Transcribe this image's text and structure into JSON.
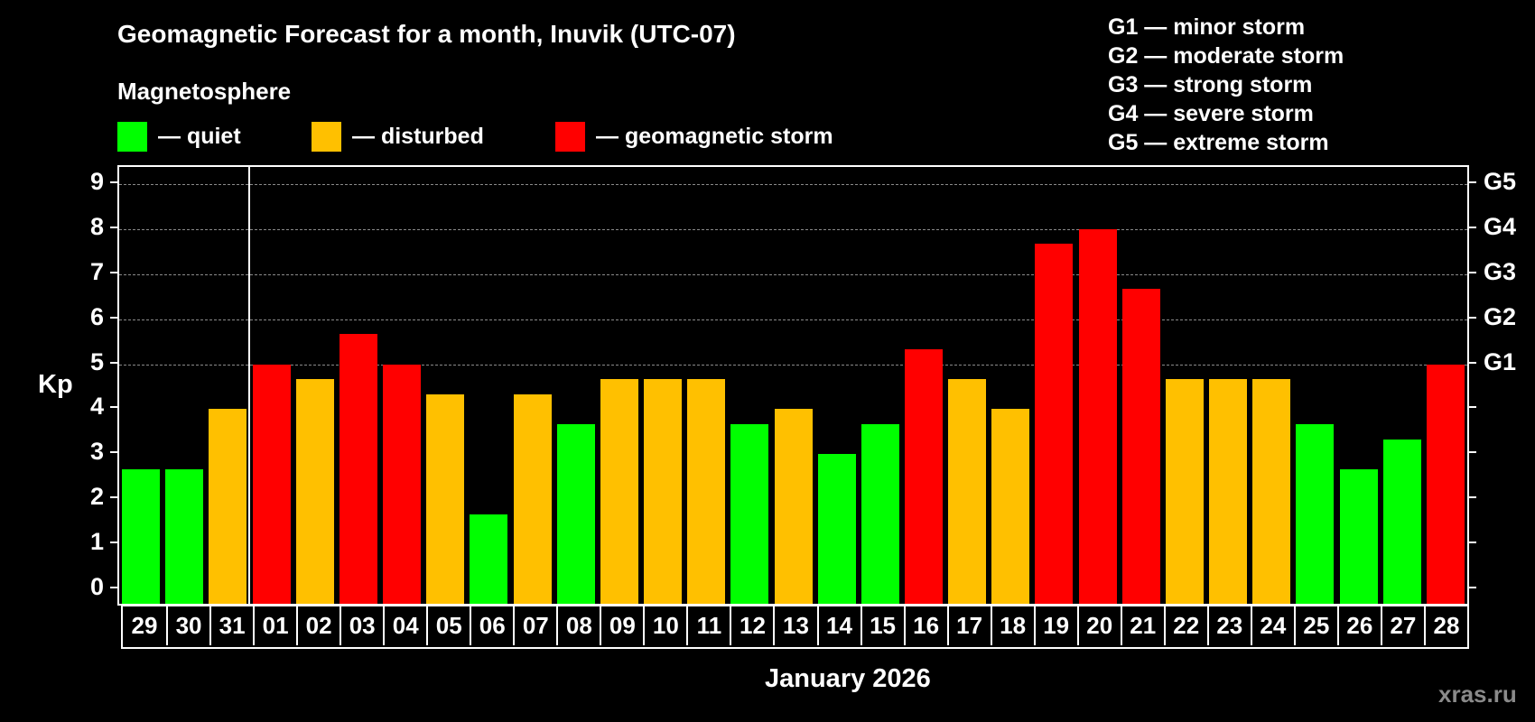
{
  "header": {
    "title": "Geomagnetic Forecast for a month, Inuvik (UTC-07)",
    "section": "Magnetosphere"
  },
  "legend": {
    "items": [
      {
        "label": "— quiet",
        "color": "#00ff00"
      },
      {
        "label": "— disturbed",
        "color": "#ffc000"
      },
      {
        "label": "— geomagnetic storm",
        "color": "#ff0000"
      }
    ],
    "g_scale": [
      "G1 — minor storm",
      "G2 — moderate storm",
      "G3 — strong storm",
      "G4 — severe storm",
      "G5 — extreme storm"
    ]
  },
  "axes": {
    "ylabel": "Kp",
    "xlabel": "January 2026",
    "y_ticks": [
      "0",
      "1",
      "2",
      "3",
      "4",
      "5",
      "6",
      "7",
      "8",
      "9"
    ],
    "right_labels": [
      {
        "value": 5,
        "label": "G1"
      },
      {
        "value": 6,
        "label": "G2"
      },
      {
        "value": 7,
        "label": "G3"
      },
      {
        "value": 8,
        "label": "G4"
      },
      {
        "value": 9,
        "label": "G5"
      }
    ]
  },
  "watermark": "xras.ru",
  "colors": {
    "quiet": "#00ff00",
    "disturbed": "#ffc000",
    "storm": "#ff0000",
    "background": "#000000",
    "grid": "#8a8a8a"
  },
  "chart_data": {
    "type": "bar",
    "title": "Geomagnetic Forecast for a month, Inuvik (UTC-07)",
    "xlabel": "January 2026",
    "ylabel": "Kp",
    "ylim": [
      0,
      9
    ],
    "grid": "horizontal dashed at 5-9",
    "categories": [
      "29",
      "30",
      "31",
      "01",
      "02",
      "03",
      "04",
      "05",
      "06",
      "07",
      "08",
      "09",
      "10",
      "11",
      "12",
      "13",
      "14",
      "15",
      "16",
      "17",
      "18",
      "19",
      "20",
      "21",
      "22",
      "23",
      "24",
      "25",
      "26",
      "27",
      "28"
    ],
    "values": [
      2.67,
      2.67,
      4,
      5,
      4.67,
      5.67,
      5,
      4.33,
      1.67,
      4.33,
      3.67,
      4.67,
      4.67,
      4.67,
      3.67,
      4,
      3,
      3.67,
      5.33,
      4.67,
      4,
      7.67,
      8,
      6.67,
      4.67,
      4.67,
      4.67,
      3.67,
      2.67,
      3.33,
      5
    ],
    "status": [
      "quiet",
      "quiet",
      "disturbed",
      "storm",
      "disturbed",
      "storm",
      "storm",
      "disturbed",
      "quiet",
      "disturbed",
      "quiet",
      "disturbed",
      "disturbed",
      "disturbed",
      "quiet",
      "disturbed",
      "quiet",
      "quiet",
      "storm",
      "disturbed",
      "disturbed",
      "storm",
      "storm",
      "storm",
      "disturbed",
      "disturbed",
      "disturbed",
      "quiet",
      "quiet",
      "quiet",
      "storm"
    ],
    "legend": [
      "quiet",
      "disturbed",
      "geomagnetic storm"
    ],
    "month_separator_after": "31"
  }
}
